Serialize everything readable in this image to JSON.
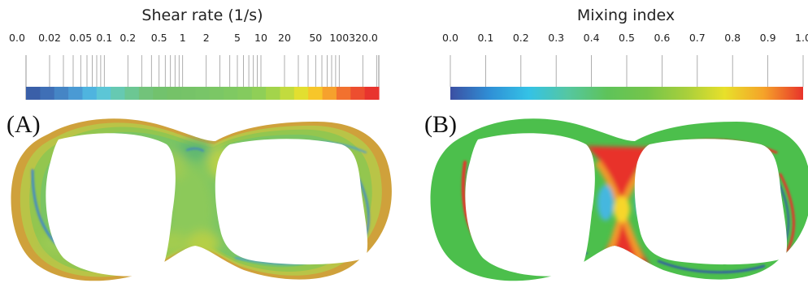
{
  "panels": [
    {
      "label": "(A)",
      "colorbar": {
        "title": "Shear rate (1/s)",
        "scale": "log",
        "range": [
          0.0,
          320.0
        ],
        "tick_labels": [
          "0.0",
          "0.02",
          "0.05",
          "0.1",
          "0.2",
          "0.5",
          "1",
          "2",
          "5",
          "10",
          "20",
          "50",
          "100",
          "320.0"
        ],
        "color_bands": [
          "#3a5fa8",
          "#3f6fb6",
          "#4585c5",
          "#4a9ad4",
          "#4fb4df",
          "#5cc6d6",
          "#66c9b2",
          "#6cc793",
          "#72c37a",
          "#72c26d",
          "#75c268",
          "#76c368",
          "#78c568",
          "#7bc765",
          "#7fc962",
          "#84cb5e",
          "#8fcf57",
          "#a3d44b",
          "#c2db3e",
          "#e2df30",
          "#f7c62a",
          "#f6a12d",
          "#f2712f",
          "#ed4e2f",
          "#e8342e"
        ]
      },
      "field": "shear rate"
    },
    {
      "label": "(B)",
      "colorbar": {
        "title": "Mixing index",
        "scale": "linear",
        "range": [
          0.0,
          1.0
        ],
        "tick_labels": [
          "0.0",
          "0.1",
          "0.2",
          "0.3",
          "0.4",
          "0.5",
          "0.6",
          "0.7",
          "0.8",
          "0.9",
          "1.0"
        ],
        "gradient_stops": [
          "#3b4fa2",
          "#2f8fd6",
          "#34c2e6",
          "#55c7a1",
          "#5ec35a",
          "#74c54a",
          "#a7cf3c",
          "#e8e02a",
          "#f5a229",
          "#e8332b"
        ]
      },
      "field": "mixing index"
    }
  ],
  "colors": {
    "shear_background": "#7bc563",
    "shear_outer_rim": "#c9a83a",
    "mixing_background": "#4cbf4c",
    "mixing_high": "#e8332b",
    "mixing_low": "#2f4fb0"
  }
}
